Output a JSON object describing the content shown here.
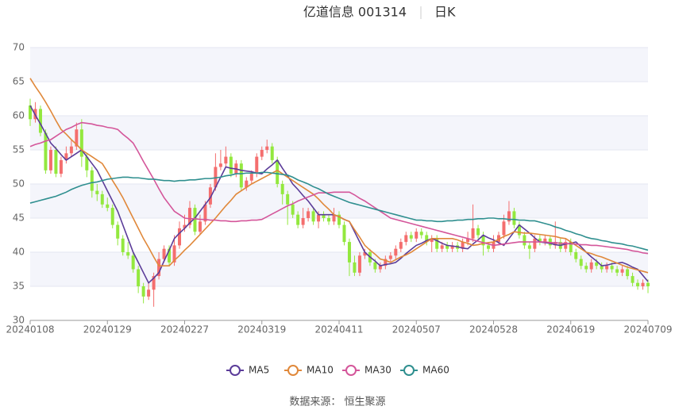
{
  "chart_data": {
    "type": "candlestick",
    "title": "亿道信息 001314",
    "period": "日K",
    "source": "数据来源： 恒生聚源",
    "categories": [
      "20240108",
      null,
      null,
      null,
      null,
      null,
      null,
      null,
      null,
      null,
      null,
      null,
      null,
      null,
      null,
      "20240129",
      null,
      null,
      null,
      null,
      null,
      null,
      null,
      null,
      null,
      null,
      null,
      null,
      null,
      null,
      "20240227",
      null,
      null,
      null,
      null,
      null,
      null,
      null,
      null,
      null,
      null,
      null,
      null,
      null,
      null,
      "20240319",
      null,
      null,
      null,
      null,
      null,
      null,
      null,
      null,
      null,
      null,
      null,
      null,
      null,
      null,
      "20240411",
      null,
      null,
      null,
      null,
      null,
      null,
      null,
      null,
      null,
      null,
      null,
      null,
      null,
      null,
      "20240507",
      null,
      null,
      null,
      null,
      null,
      null,
      null,
      null,
      null,
      null,
      null,
      null,
      null,
      null,
      "20240528",
      null,
      null,
      null,
      null,
      null,
      null,
      null,
      null,
      null,
      null,
      null,
      null,
      null,
      null,
      "20240619",
      null,
      null,
      null,
      null,
      null,
      null,
      null,
      null,
      null,
      null,
      null,
      null,
      null,
      null,
      "20240709"
    ],
    "open": [
      61.5,
      59.5,
      61.0,
      57.5,
      52.0,
      55.0,
      51.5,
      53.5,
      54.5,
      55.5,
      58.0,
      54.0,
      52.0,
      49.0,
      48.5,
      47.0,
      46.5,
      44.0,
      42.0,
      40.0,
      39.5,
      37.5,
      35.0,
      33.5,
      34.5,
      36.5,
      39.0,
      40.5,
      38.5,
      41.0,
      43.5,
      44.0,
      46.5,
      43.0,
      44.5,
      47.0,
      49.5,
      52.5,
      53.0,
      54.0,
      51.5,
      53.0,
      49.5,
      50.5,
      51.5,
      54.0,
      55.0,
      55.5,
      53.5,
      50.0,
      48.5,
      47.0,
      45.5,
      44.0,
      45.0,
      46.0,
      44.5,
      45.5,
      45.0,
      44.5,
      45.5,
      44.0,
      41.5,
      38.5,
      37.0,
      39.5,
      40.0,
      38.5,
      37.5,
      38.0,
      39.0,
      39.5,
      40.5,
      41.5,
      42.5,
      42.0,
      43.0,
      42.5,
      41.5,
      42.0,
      40.5,
      41.0,
      40.5,
      41.0,
      40.5,
      41.5,
      42.0,
      43.5,
      42.5,
      41.0,
      40.5,
      41.5,
      42.5,
      44.5,
      46.0,
      44.0,
      42.5,
      41.0,
      40.5,
      42.0,
      41.5,
      42.0,
      41.0,
      41.5,
      40.5,
      41.5,
      40.0,
      39.0,
      38.0,
      37.5,
      38.5,
      38.0,
      37.5,
      38.0,
      37.5,
      37.0,
      37.5,
      36.5,
      35.5,
      35.0,
      35.5
    ],
    "close": [
      59.5,
      61.0,
      57.5,
      52.0,
      55.0,
      51.5,
      53.5,
      54.5,
      55.5,
      58.0,
      54.0,
      52.0,
      49.0,
      48.5,
      47.0,
      46.5,
      44.0,
      42.0,
      40.0,
      39.5,
      37.5,
      35.0,
      33.5,
      34.5,
      36.5,
      39.0,
      40.5,
      38.5,
      41.0,
      43.5,
      44.0,
      46.5,
      43.0,
      44.5,
      47.0,
      49.5,
      52.5,
      53.0,
      54.0,
      51.5,
      53.0,
      49.5,
      50.5,
      51.5,
      54.0,
      55.0,
      55.5,
      53.5,
      50.0,
      48.5,
      47.0,
      45.5,
      44.0,
      45.0,
      46.0,
      44.5,
      45.5,
      45.0,
      44.5,
      45.5,
      44.0,
      41.5,
      38.5,
      37.0,
      39.5,
      40.0,
      38.5,
      37.5,
      38.0,
      39.0,
      39.5,
      40.5,
      41.5,
      42.5,
      42.0,
      43.0,
      42.5,
      41.5,
      42.0,
      40.5,
      41.0,
      40.5,
      41.0,
      40.5,
      41.5,
      42.0,
      43.5,
      42.5,
      41.0,
      40.5,
      41.5,
      42.5,
      44.5,
      46.0,
      44.0,
      42.5,
      41.0,
      40.5,
      42.0,
      41.5,
      42.0,
      41.0,
      41.5,
      40.5,
      41.5,
      40.0,
      39.0,
      38.0,
      37.5,
      38.5,
      38.0,
      37.5,
      38.0,
      37.5,
      37.0,
      37.5,
      36.5,
      35.5,
      35.0,
      35.5,
      35.0
    ],
    "high": [
      62.5,
      62.0,
      61.5,
      58.0,
      55.5,
      55.5,
      54.0,
      55.5,
      56.5,
      59.0,
      59.5,
      54.5,
      52.5,
      50.0,
      49.0,
      48.0,
      47.0,
      44.5,
      42.5,
      41.5,
      40.0,
      38.0,
      35.5,
      35.5,
      37.0,
      40.0,
      41.0,
      41.0,
      42.5,
      44.5,
      45.5,
      47.5,
      47.0,
      45.5,
      47.5,
      50.0,
      54.5,
      55.0,
      55.5,
      54.5,
      53.5,
      53.5,
      51.0,
      52.0,
      54.5,
      55.5,
      56.5,
      56.0,
      54.0,
      50.5,
      49.0,
      47.5,
      46.0,
      46.5,
      46.5,
      46.5,
      46.0,
      46.0,
      45.5,
      46.5,
      46.0,
      44.5,
      42.0,
      39.5,
      40.0,
      40.5,
      40.5,
      39.0,
      38.5,
      39.5,
      40.0,
      41.0,
      42.0,
      43.0,
      43.0,
      43.5,
      43.5,
      43.0,
      42.5,
      42.5,
      41.5,
      41.5,
      41.5,
      41.5,
      42.0,
      43.0,
      47.0,
      44.0,
      43.0,
      41.5,
      42.5,
      43.0,
      45.5,
      47.5,
      46.5,
      44.5,
      43.0,
      41.5,
      42.5,
      42.5,
      42.5,
      42.5,
      44.5,
      42.0,
      42.0,
      42.0,
      40.5,
      39.5,
      38.5,
      39.0,
      39.0,
      38.5,
      38.5,
      38.5,
      38.0,
      38.0,
      38.0,
      37.0,
      36.0,
      36.0,
      36.0
    ],
    "low": [
      58.5,
      59.0,
      57.0,
      51.5,
      51.5,
      51.0,
      51.0,
      53.0,
      54.0,
      55.0,
      52.5,
      51.0,
      48.0,
      47.5,
      46.5,
      46.0,
      43.5,
      41.0,
      39.5,
      39.0,
      37.0,
      34.0,
      32.5,
      33.0,
      32.0,
      36.0,
      38.5,
      38.0,
      38.0,
      40.5,
      43.0,
      43.5,
      42.5,
      42.5,
      44.0,
      46.5,
      49.0,
      52.0,
      52.5,
      51.0,
      51.0,
      49.0,
      49.0,
      50.0,
      51.0,
      53.5,
      54.5,
      53.0,
      49.5,
      47.0,
      44.0,
      45.0,
      43.5,
      43.5,
      44.5,
      44.0,
      43.5,
      44.5,
      44.0,
      44.0,
      43.5,
      41.0,
      36.5,
      36.5,
      36.5,
      39.0,
      38.0,
      37.0,
      37.0,
      37.5,
      38.5,
      39.0,
      40.0,
      41.0,
      41.5,
      41.5,
      42.0,
      41.0,
      40.0,
      40.0,
      40.0,
      40.0,
      40.0,
      40.0,
      40.0,
      41.0,
      41.5,
      42.0,
      39.5,
      40.0,
      40.0,
      41.0,
      42.0,
      44.0,
      43.5,
      42.0,
      40.5,
      39.0,
      40.0,
      41.0,
      41.0,
      40.5,
      40.5,
      40.0,
      40.0,
      39.5,
      38.5,
      37.5,
      37.0,
      37.0,
      37.5,
      37.0,
      37.0,
      37.0,
      36.5,
      36.5,
      36.0,
      35.0,
      34.5,
      34.5,
      34.0
    ],
    "up_color": "#f46e6e",
    "down_color": "#93e83e",
    "series": [
      {
        "name": "MA5",
        "color": "#5b3c99",
        "values": [
          61.5,
          60.1,
          58.8,
          57.4,
          56.0,
          55.2,
          54.3,
          53.5,
          54.0,
          54.5,
          55.0,
          54.0,
          53.0,
          52.0,
          50.5,
          49.0,
          47.5,
          46.0,
          44.0,
          42.0,
          40.0,
          38.5,
          37.0,
          35.5,
          36.2,
          37.0,
          38.7,
          40.3,
          42.0,
          42.8,
          43.5,
          44.3,
          45.0,
          46.0,
          47.0,
          48.0,
          49.5,
          51.0,
          52.5,
          52.3,
          52.2,
          52.0,
          51.9,
          51.8,
          51.6,
          51.5,
          52.2,
          52.8,
          53.5,
          52.3,
          51.2,
          50.0,
          49.2,
          48.3,
          47.5,
          46.5,
          45.5,
          45.5,
          45.5,
          45.5,
          45.2,
          44.8,
          44.5,
          43.0,
          41.5,
          40.0,
          39.3,
          38.7,
          38.0,
          38.2,
          38.3,
          38.5,
          39.1,
          39.8,
          40.4,
          41.0,
          41.3,
          41.7,
          42.0,
          41.7,
          41.3,
          41.0,
          40.9,
          40.8,
          40.6,
          40.5,
          41.2,
          41.8,
          42.5,
          42.1,
          41.8,
          41.4,
          41.0,
          42.0,
          43.0,
          44.0,
          43.4,
          42.8,
          42.1,
          41.5,
          41.4,
          41.3,
          41.1,
          41.0,
          41.2,
          41.3,
          41.5,
          40.8,
          40.0,
          39.3,
          38.7,
          38.0,
          38.1,
          38.3,
          38.4,
          38.5,
          38.2,
          37.8,
          37.5,
          36.6,
          35.7
        ]
      },
      {
        "name": "MA10",
        "color": "#e0883a",
        "values": [
          65.5,
          64.3,
          63.2,
          62.0,
          60.7,
          59.3,
          58.0,
          57.3,
          56.5,
          55.8,
          55.0,
          54.5,
          54.0,
          53.5,
          53.0,
          51.8,
          50.5,
          49.3,
          48.0,
          46.5,
          45.0,
          43.5,
          42.0,
          40.7,
          39.3,
          38.0,
          38.0,
          38.0,
          38.8,
          39.5,
          40.3,
          41.0,
          41.8,
          42.6,
          43.4,
          44.2,
          45.0,
          45.9,
          46.8,
          47.6,
          48.5,
          49.0,
          49.5,
          50.0,
          50.4,
          50.8,
          51.2,
          51.6,
          52.0,
          51.5,
          51.0,
          50.5,
          50.0,
          49.5,
          49.0,
          48.5,
          47.8,
          47.0,
          46.3,
          45.5,
          45.2,
          44.8,
          44.5,
          43.3,
          42.2,
          41.0,
          40.3,
          39.7,
          39.0,
          38.8,
          38.5,
          38.9,
          39.3,
          39.6,
          40.0,
          40.5,
          41.0,
          41.5,
          42.0,
          42.0,
          42.0,
          42.0,
          42.0,
          41.8,
          41.5,
          41.3,
          41.0,
          41.1,
          41.3,
          41.4,
          41.5,
          41.9,
          42.3,
          42.6,
          43.0,
          42.9,
          42.8,
          42.8,
          42.7,
          42.6,
          42.5,
          42.4,
          42.3,
          42.1,
          42.0,
          41.5,
          41.0,
          40.5,
          40.0,
          39.8,
          39.5,
          39.3,
          39.0,
          38.7,
          38.4,
          38.1,
          37.8,
          37.6,
          37.4,
          37.2,
          37.0
        ]
      },
      {
        "name": "MA30",
        "color": "#d4569a",
        "values": [
          55.5,
          55.8,
          56.0,
          56.3,
          56.5,
          57.0,
          57.5,
          58.0,
          58.3,
          58.7,
          59.0,
          58.9,
          58.8,
          58.6,
          58.5,
          58.3,
          58.2,
          58.0,
          57.3,
          56.7,
          56.0,
          54.7,
          53.3,
          52.0,
          50.7,
          49.3,
          48.0,
          47.0,
          46.0,
          45.5,
          45.0,
          44.9,
          44.9,
          44.8,
          44.8,
          44.7,
          44.7,
          44.6,
          44.6,
          44.5,
          44.5,
          44.6,
          44.6,
          44.7,
          44.7,
          44.8,
          45.2,
          45.6,
          46.0,
          46.4,
          46.8,
          47.1,
          47.5,
          47.8,
          48.1,
          48.4,
          48.7,
          48.7,
          48.7,
          48.8,
          48.8,
          48.8,
          48.8,
          48.4,
          47.9,
          47.5,
          47.0,
          46.5,
          46.0,
          45.5,
          45.0,
          44.8,
          44.6,
          44.4,
          44.2,
          44.0,
          43.8,
          43.6,
          43.4,
          43.2,
          43.0,
          42.8,
          42.6,
          42.4,
          42.2,
          42.0,
          41.8,
          41.6,
          41.4,
          41.2,
          41.0,
          41.1,
          41.2,
          41.3,
          41.4,
          41.5,
          41.5,
          41.5,
          41.5,
          41.5,
          41.5,
          41.4,
          41.4,
          41.3,
          41.3,
          41.2,
          41.2,
          41.1,
          41.1,
          41.0,
          41.0,
          40.9,
          40.8,
          40.7,
          40.6,
          40.5,
          40.4,
          40.2,
          40.1,
          39.9,
          39.8
        ]
      },
      {
        "name": "MA60",
        "color": "#2f8f8f",
        "values": [
          47.2,
          47.4,
          47.6,
          47.8,
          48.0,
          48.2,
          48.5,
          48.8,
          49.2,
          49.5,
          49.8,
          50.0,
          50.2,
          50.3,
          50.5,
          50.7,
          50.8,
          50.9,
          51.0,
          51.0,
          50.9,
          50.9,
          50.8,
          50.7,
          50.7,
          50.6,
          50.5,
          50.5,
          50.4,
          50.5,
          50.5,
          50.6,
          50.6,
          50.7,
          50.8,
          50.8,
          50.9,
          51.0,
          51.2,
          51.3,
          51.5,
          51.5,
          51.6,
          51.6,
          51.6,
          51.7,
          51.7,
          51.6,
          51.5,
          51.4,
          51.3,
          51.0,
          50.6,
          50.3,
          50.0,
          49.6,
          49.3,
          48.9,
          48.5,
          48.2,
          47.9,
          47.6,
          47.3,
          47.1,
          46.9,
          46.7,
          46.5,
          46.3,
          46.1,
          45.9,
          45.7,
          45.5,
          45.3,
          45.1,
          44.9,
          44.7,
          44.7,
          44.6,
          44.6,
          44.5,
          44.5,
          44.6,
          44.6,
          44.7,
          44.7,
          44.8,
          44.8,
          44.9,
          44.9,
          45.0,
          45.0,
          44.9,
          44.9,
          44.8,
          44.8,
          44.7,
          44.7,
          44.6,
          44.6,
          44.4,
          44.2,
          44.0,
          43.7,
          43.5,
          43.2,
          43.0,
          42.7,
          42.5,
          42.2,
          42.0,
          41.9,
          41.7,
          41.6,
          41.4,
          41.3,
          41.2,
          41.0,
          40.9,
          40.7,
          40.5,
          40.3
        ]
      }
    ],
    "ylim": [
      30,
      70
    ],
    "yticks": [
      30,
      35,
      40,
      45,
      50,
      55,
      60,
      65,
      70
    ],
    "grid": true
  }
}
